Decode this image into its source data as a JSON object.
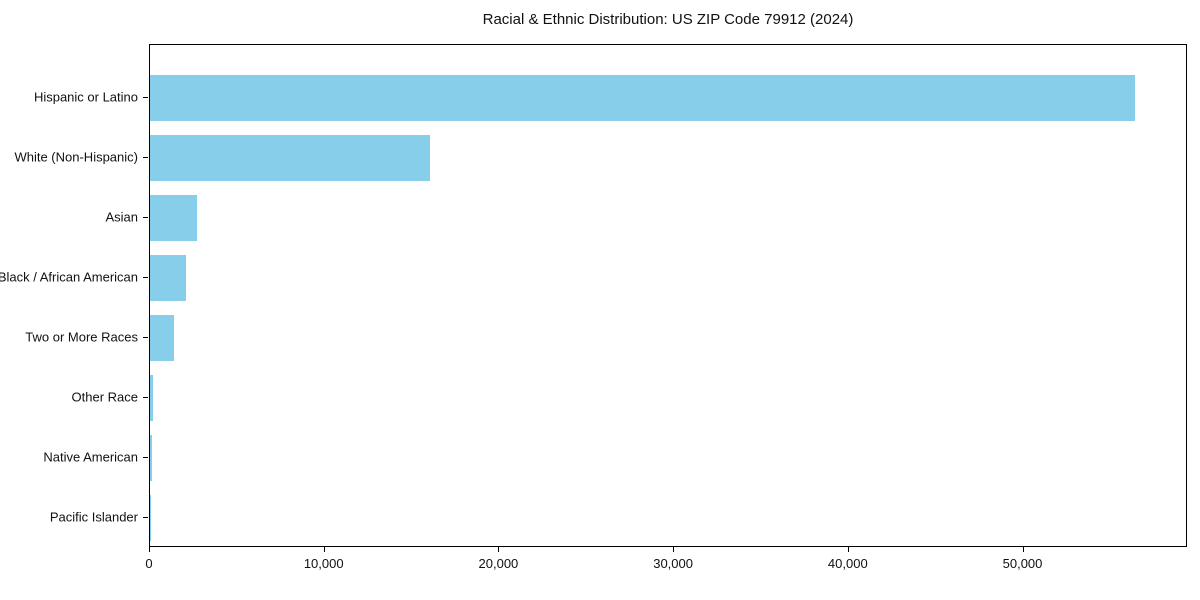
{
  "chart_data": {
    "type": "bar",
    "orientation": "horizontal",
    "title": "Racial & Ethnic Distribution: US ZIP Code 79912 (2024)",
    "categories": [
      "Hispanic or Latino",
      "White (Non-Hispanic)",
      "Asian",
      "Black / African American",
      "Two or More Races",
      "Other Race",
      "Native American",
      "Pacific Islander"
    ],
    "values": [
      56400,
      16000,
      2690,
      2060,
      1370,
      200,
      115,
      30
    ],
    "xlabel": "",
    "ylabel": "",
    "xlim": [
      0,
      59300
    ],
    "xticks": [
      0,
      10000,
      20000,
      30000,
      40000,
      50000
    ],
    "xtick_labels": [
      "0",
      "10,000",
      "20,000",
      "30,000",
      "40,000",
      "50,000"
    ],
    "bar_color": "#87CEEB",
    "axis_color": "#000000",
    "background_color": "#FFFFFF",
    "grid": false,
    "legend": null
  }
}
